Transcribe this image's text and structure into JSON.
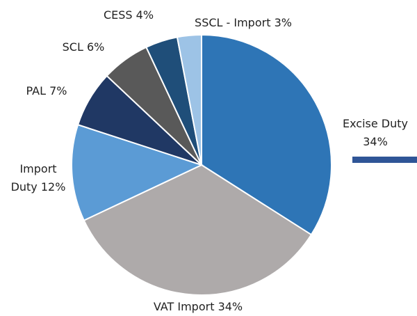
{
  "chart_data": {
    "type": "pie",
    "categories": [
      "Excise Duty",
      "VAT Import",
      "Import Duty",
      "PAL",
      "SCL",
      "CESS",
      "SSCL - Import"
    ],
    "values": [
      34,
      34,
      12,
      7,
      6,
      4,
      3
    ],
    "value_labels": [
      "34%",
      "34%",
      "12%",
      "7%",
      "6%",
      "4%",
      "3%"
    ],
    "colors": [
      "#2e75b6",
      "#aeaaaa",
      "#5b9bd5",
      "#203864",
      "#595959",
      "#1f4e79",
      "#9dc3e6"
    ]
  }
}
